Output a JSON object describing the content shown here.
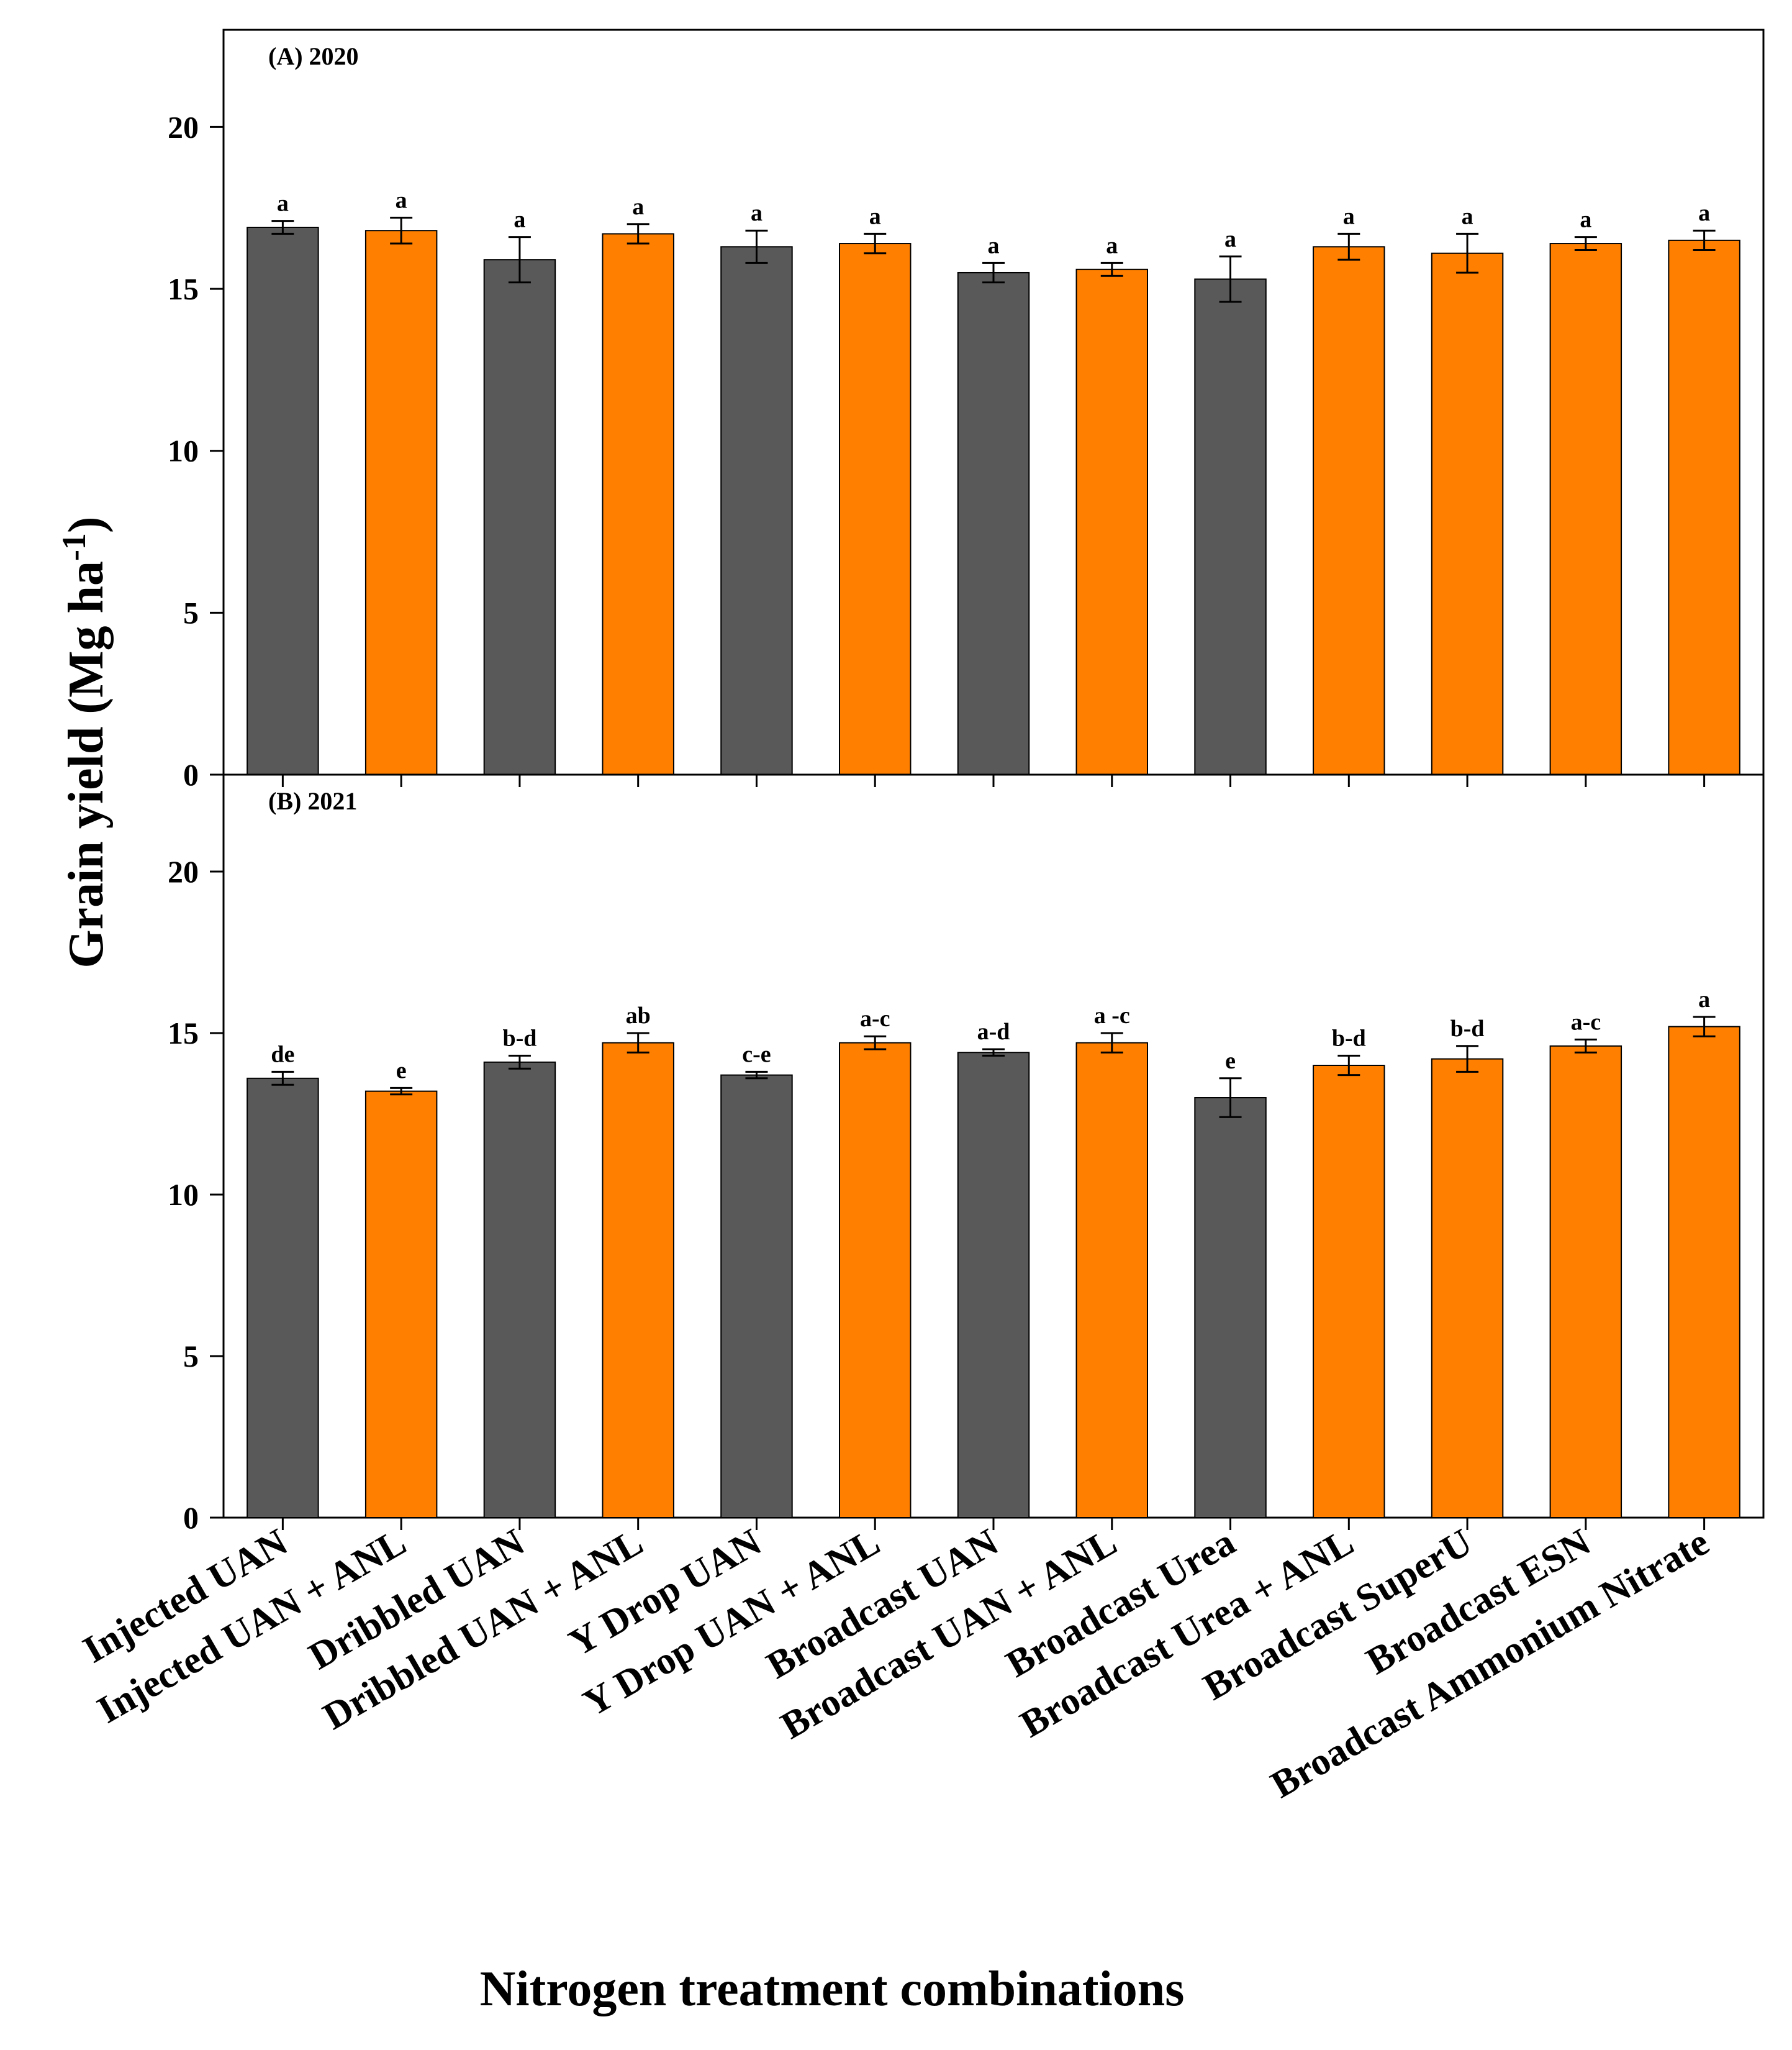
{
  "chart_data": {
    "type": "bar",
    "ylabel": "Grain yield (Mg ha",
    "ylabel_superscript": "-1",
    "ylabel_close": ")",
    "xlabel": "Nitrogen treatment combinations",
    "categories": [
      "Injected UAN",
      "Injected UAN + ANL",
      "Dribbled UAN",
      "Dribbled UAN + ANL",
      "Y Drop UAN",
      "Y Drop UAN + ANL",
      "Broadcast UAN",
      "Broadcast UAN + ANL",
      "Broadcast Urea",
      "Broadcast Urea + ANL",
      "Broadcast SuperU",
      "Broadcast ESN",
      "Broadcast Ammonium Nitrate"
    ],
    "bar_colors": [
      "#595959",
      "#ff8000",
      "#595959",
      "#ff8000",
      "#595959",
      "#ff8000",
      "#595959",
      "#ff8000",
      "#595959",
      "#ff8000",
      "#ff8000",
      "#ff8000",
      "#ff8000"
    ],
    "ylim": [
      0,
      23
    ],
    "yticks": [
      0,
      5,
      10,
      15,
      20
    ],
    "panels": [
      {
        "label": "(A) 2020",
        "values": [
          16.9,
          16.8,
          15.9,
          16.7,
          16.3,
          16.4,
          15.5,
          15.6,
          15.3,
          16.3,
          16.1,
          16.4,
          16.5
        ],
        "errors": [
          0.2,
          0.4,
          0.7,
          0.3,
          0.5,
          0.3,
          0.3,
          0.2,
          0.7,
          0.4,
          0.6,
          0.2,
          0.3
        ],
        "letters": [
          "a",
          "a",
          "a",
          "a",
          "a",
          "a",
          "a",
          "a",
          "a",
          "a",
          "a",
          "a",
          "a"
        ]
      },
      {
        "label": "(B) 2021",
        "values": [
          13.6,
          13.2,
          14.1,
          14.7,
          13.7,
          14.7,
          14.4,
          14.7,
          13.0,
          14.0,
          14.2,
          14.6,
          15.2
        ],
        "errors": [
          0.2,
          0.1,
          0.2,
          0.3,
          0.1,
          0.2,
          0.1,
          0.3,
          0.6,
          0.3,
          0.4,
          0.2,
          0.3
        ],
        "letters": [
          "de",
          "e",
          "b-d",
          "ab",
          "c-e",
          "a-c",
          "a-d",
          "a -c",
          "e",
          "b-d",
          "b-d",
          "a-c",
          "a"
        ]
      }
    ]
  }
}
